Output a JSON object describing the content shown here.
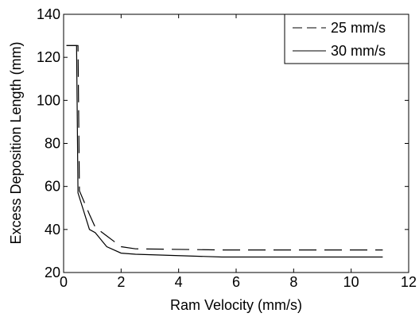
{
  "chart_data": {
    "type": "line",
    "xlabel": "Ram Velocity (mm/s)",
    "ylabel": "Excess Deposition Length (mm)",
    "xlim": [
      0,
      12
    ],
    "ylim": [
      20,
      140
    ],
    "xticks": [
      "0",
      "2",
      "4",
      "6",
      "8",
      "10",
      "12"
    ],
    "yticks": [
      "20",
      "40",
      "60",
      "80",
      "100",
      "120",
      "140"
    ],
    "grid": false,
    "legend_position": "top-right",
    "series": [
      {
        "name": "25 mm/s",
        "style": "dashed",
        "color": "#000000",
        "x": [
          0.1,
          0.5,
          0.55,
          0.9,
          1.1,
          1.5,
          2.0,
          2.5,
          5.5,
          11.1
        ],
        "y": [
          125.5,
          125.5,
          58,
          47,
          41,
          37,
          32,
          31,
          30.5,
          30.5
        ]
      },
      {
        "name": "30 mm/s",
        "style": "solid",
        "color": "#000000",
        "x": [
          0.1,
          0.45,
          0.5,
          0.9,
          1.1,
          1.5,
          2.0,
          2.5,
          5.5,
          11.1
        ],
        "y": [
          125.5,
          125.5,
          57,
          40,
          38.5,
          32,
          29,
          28.5,
          27.2,
          27.2
        ]
      }
    ]
  }
}
